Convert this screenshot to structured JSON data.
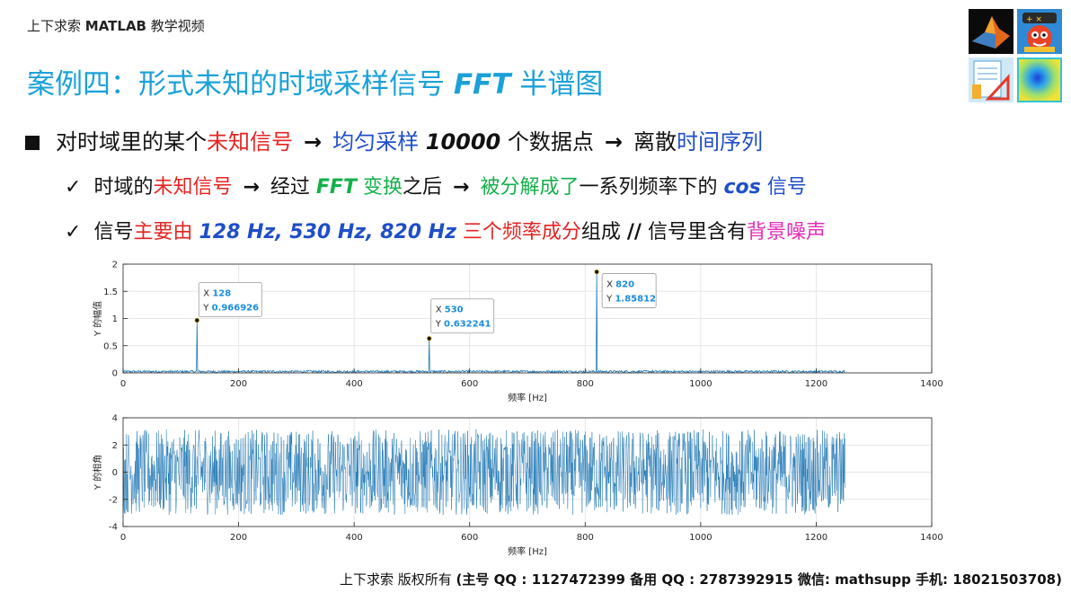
{
  "header": {
    "brand_prefix": "上下求索 ",
    "brand_bold": "MATLAB",
    "brand_suffix": " 教学视频"
  },
  "title": {
    "part1": "案例四：形式未知的时域采样信号 ",
    "part2": "FFT",
    "part3": " 半谱图"
  },
  "logos": [
    "matlab-membrane-logo",
    "cartoon-robot-logo",
    "math-tools-logo",
    "heatmap-logo"
  ],
  "bullet1": {
    "t1": "对时域里的某个",
    "t2": "未知信号",
    "t3": "→",
    "t4": "均匀采样 ",
    "t5": "10000",
    "t6": " 个数据点",
    "t7": "→",
    "t8": "离散",
    "t9": "时间序列"
  },
  "bullet2": {
    "check": "✓",
    "t1": "时域的",
    "t2": "未知信号",
    "t3": "→",
    "t4": "经过 ",
    "t5": "FFT",
    "t6": " 变换",
    "t7": "之后",
    "t8": "→",
    "t9": "被分解成了",
    "t10": "一系列频率下的 ",
    "t11": "cos",
    "t12": " 信号"
  },
  "bullet3": {
    "check": "✓",
    "t1": "信号",
    "t2": "主要由 ",
    "t3": "128 Hz, 530 Hz, 820 Hz",
    "t4": " 三个频率成分",
    "t5": "组成 ",
    "t6": "//",
    "t7": " 信号里含有",
    "t8": "背景噪声"
  },
  "chart_data": [
    {
      "type": "line",
      "xlabel": "频率 [Hz]",
      "ylabel": "Y 的幅值",
      "xlim": [
        0,
        1400
      ],
      "ylim": [
        0,
        2
      ],
      "xticks": [
        0,
        200,
        400,
        600,
        800,
        1000,
        1200,
        1400
      ],
      "yticks": [
        0,
        0.5,
        1,
        1.5,
        2
      ],
      "grid": true,
      "x_range": [
        0,
        1250
      ],
      "noise_level": 0.04,
      "peaks": [
        {
          "x": 128,
          "y": 0.966926
        },
        {
          "x": 530,
          "y": 0.632241
        },
        {
          "x": 820,
          "y": 1.85812
        }
      ],
      "datatips": [
        {
          "x_label": "X",
          "x_value": "128",
          "y_label": "Y",
          "y_value": "0.966926"
        },
        {
          "x_label": "X",
          "x_value": "530",
          "y_label": "Y",
          "y_value": "0.632241"
        },
        {
          "x_label": "X",
          "x_value": "820",
          "y_label": "Y",
          "y_value": "1.85812"
        }
      ],
      "line_color": "#1f77b4"
    },
    {
      "type": "line",
      "xlabel": "频率 [Hz]",
      "ylabel": "Y 的相角",
      "xlim": [
        0,
        1400
      ],
      "ylim": [
        -4,
        4
      ],
      "xticks": [
        0,
        200,
        400,
        600,
        800,
        1000,
        1200,
        1400
      ],
      "yticks": [
        -4,
        -2,
        0,
        2,
        4
      ],
      "grid": true,
      "x_range": [
        0,
        1250
      ],
      "value_range": [
        -3.14159,
        3.14159
      ],
      "line_color": "#1f77b4"
    }
  ],
  "footer": {
    "t1": "上下求索  版权所有  ",
    "t2": "(主号 QQ : 1127472399   备用 QQ : 2787392915   微信: mathsupp   手机: 18021503708)"
  }
}
